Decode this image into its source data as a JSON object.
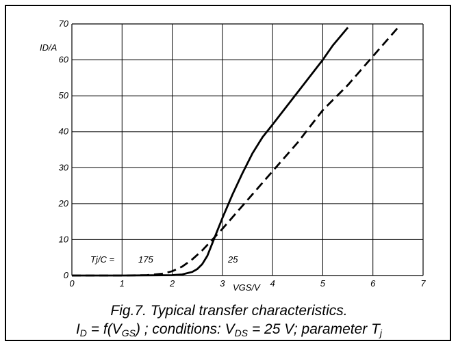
{
  "chart_data": {
    "type": "line",
    "x_ticks": [
      "0",
      "1",
      "2",
      "3",
      "4",
      "5",
      "6",
      "7"
    ],
    "y_ticks": [
      "0",
      "10",
      "20",
      "30",
      "40",
      "50",
      "60",
      "70"
    ],
    "xlabel": "VGS/V",
    "ylabel": "ID/A",
    "xlim": [
      0,
      7
    ],
    "ylim": [
      0,
      70
    ],
    "grid": true,
    "annotations": {
      "param": "Tj/C =",
      "label_175": "175",
      "label_25": "25"
    },
    "series": [
      {
        "name": "25",
        "style": "solid",
        "color": "#000000",
        "points": [
          [
            0,
            0
          ],
          [
            1,
            0
          ],
          [
            1.6,
            0.05
          ],
          [
            2.0,
            0.1
          ],
          [
            2.2,
            0.3
          ],
          [
            2.4,
            1.0
          ],
          [
            2.5,
            1.8
          ],
          [
            2.6,
            3.2
          ],
          [
            2.7,
            5.5
          ],
          [
            2.8,
            9.0
          ],
          [
            2.9,
            12.5
          ],
          [
            3.0,
            16.0
          ],
          [
            3.2,
            22.5
          ],
          [
            3.4,
            28.5
          ],
          [
            3.6,
            34.0
          ],
          [
            3.8,
            38.5
          ],
          [
            4.0,
            42.0
          ],
          [
            4.5,
            51.0
          ],
          [
            5.0,
            60.0
          ],
          [
            5.2,
            64.0
          ],
          [
            5.5,
            69.0
          ]
        ]
      },
      {
        "name": "175",
        "style": "dashed",
        "color": "#000000",
        "points": [
          [
            0,
            0
          ],
          [
            1,
            0
          ],
          [
            1.5,
            0.1
          ],
          [
            1.8,
            0.5
          ],
          [
            2.0,
            1.2
          ],
          [
            2.2,
            2.5
          ],
          [
            2.4,
            4.5
          ],
          [
            2.6,
            7.0
          ],
          [
            2.8,
            10.0
          ],
          [
            3.0,
            13.0
          ],
          [
            3.5,
            21.0
          ],
          [
            4.0,
            29.0
          ],
          [
            4.5,
            37.0
          ],
          [
            5.0,
            46.0
          ],
          [
            5.5,
            53.0
          ],
          [
            6.0,
            61.0
          ],
          [
            6.5,
            69.0
          ]
        ]
      }
    ]
  },
  "caption": {
    "line1": "Fig.7.   Typical transfer characteristics.",
    "line2": {
      "I": "I",
      "D": "D",
      "eq": " = f(V",
      "GS": "GS",
      "cond": ") ; conditions: V",
      "DS": "DS",
      "val": " = 25 V; parameter T",
      "j": "j"
    }
  }
}
